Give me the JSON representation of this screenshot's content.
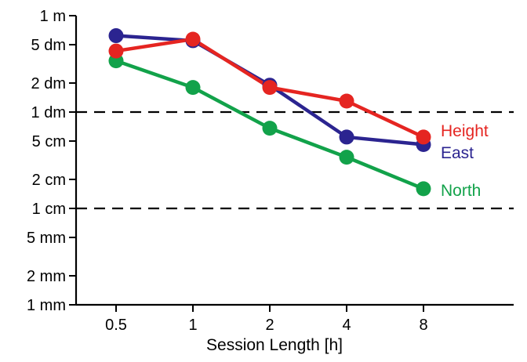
{
  "chart_data": {
    "type": "line",
    "title": "",
    "xlabel": "Session Length [h]",
    "ylabel": "",
    "x": [
      0.5,
      1,
      2,
      4,
      8
    ],
    "x_tick_labels": [
      "0.5",
      "1",
      "2",
      "4",
      "8"
    ],
    "x_scale": "log2",
    "y_scale": "log",
    "y_unit": "m",
    "ylim": [
      0.001,
      1
    ],
    "y_ticks": [
      {
        "value": 1,
        "label": "1 m"
      },
      {
        "value": 0.5,
        "label": "5 dm"
      },
      {
        "value": 0.2,
        "label": "2 dm"
      },
      {
        "value": 0.1,
        "label": "1 dm"
      },
      {
        "value": 0.05,
        "label": "5 cm"
      },
      {
        "value": 0.02,
        "label": "2 cm"
      },
      {
        "value": 0.01,
        "label": "1 cm"
      },
      {
        "value": 0.005,
        "label": "5 mm"
      },
      {
        "value": 0.002,
        "label": "2 mm"
      },
      {
        "value": 0.001,
        "label": "1 mm"
      }
    ],
    "reference_lines": [
      {
        "value": 0.1,
        "style": "dashed",
        "color": "#000000"
      },
      {
        "value": 0.01,
        "style": "dashed",
        "color": "#000000"
      }
    ],
    "series": [
      {
        "name": "North",
        "color": "#12a24a",
        "values": [
          0.34,
          0.18,
          0.068,
          0.034,
          0.016
        ]
      },
      {
        "name": "East",
        "color": "#2b2490",
        "values": [
          0.62,
          0.55,
          0.19,
          0.055,
          0.046
        ]
      },
      {
        "name": "Height",
        "color": "#e52521",
        "values": [
          0.43,
          0.57,
          0.18,
          0.13,
          0.055
        ]
      }
    ],
    "grid": false,
    "legend": "series labels at right end of lines"
  }
}
